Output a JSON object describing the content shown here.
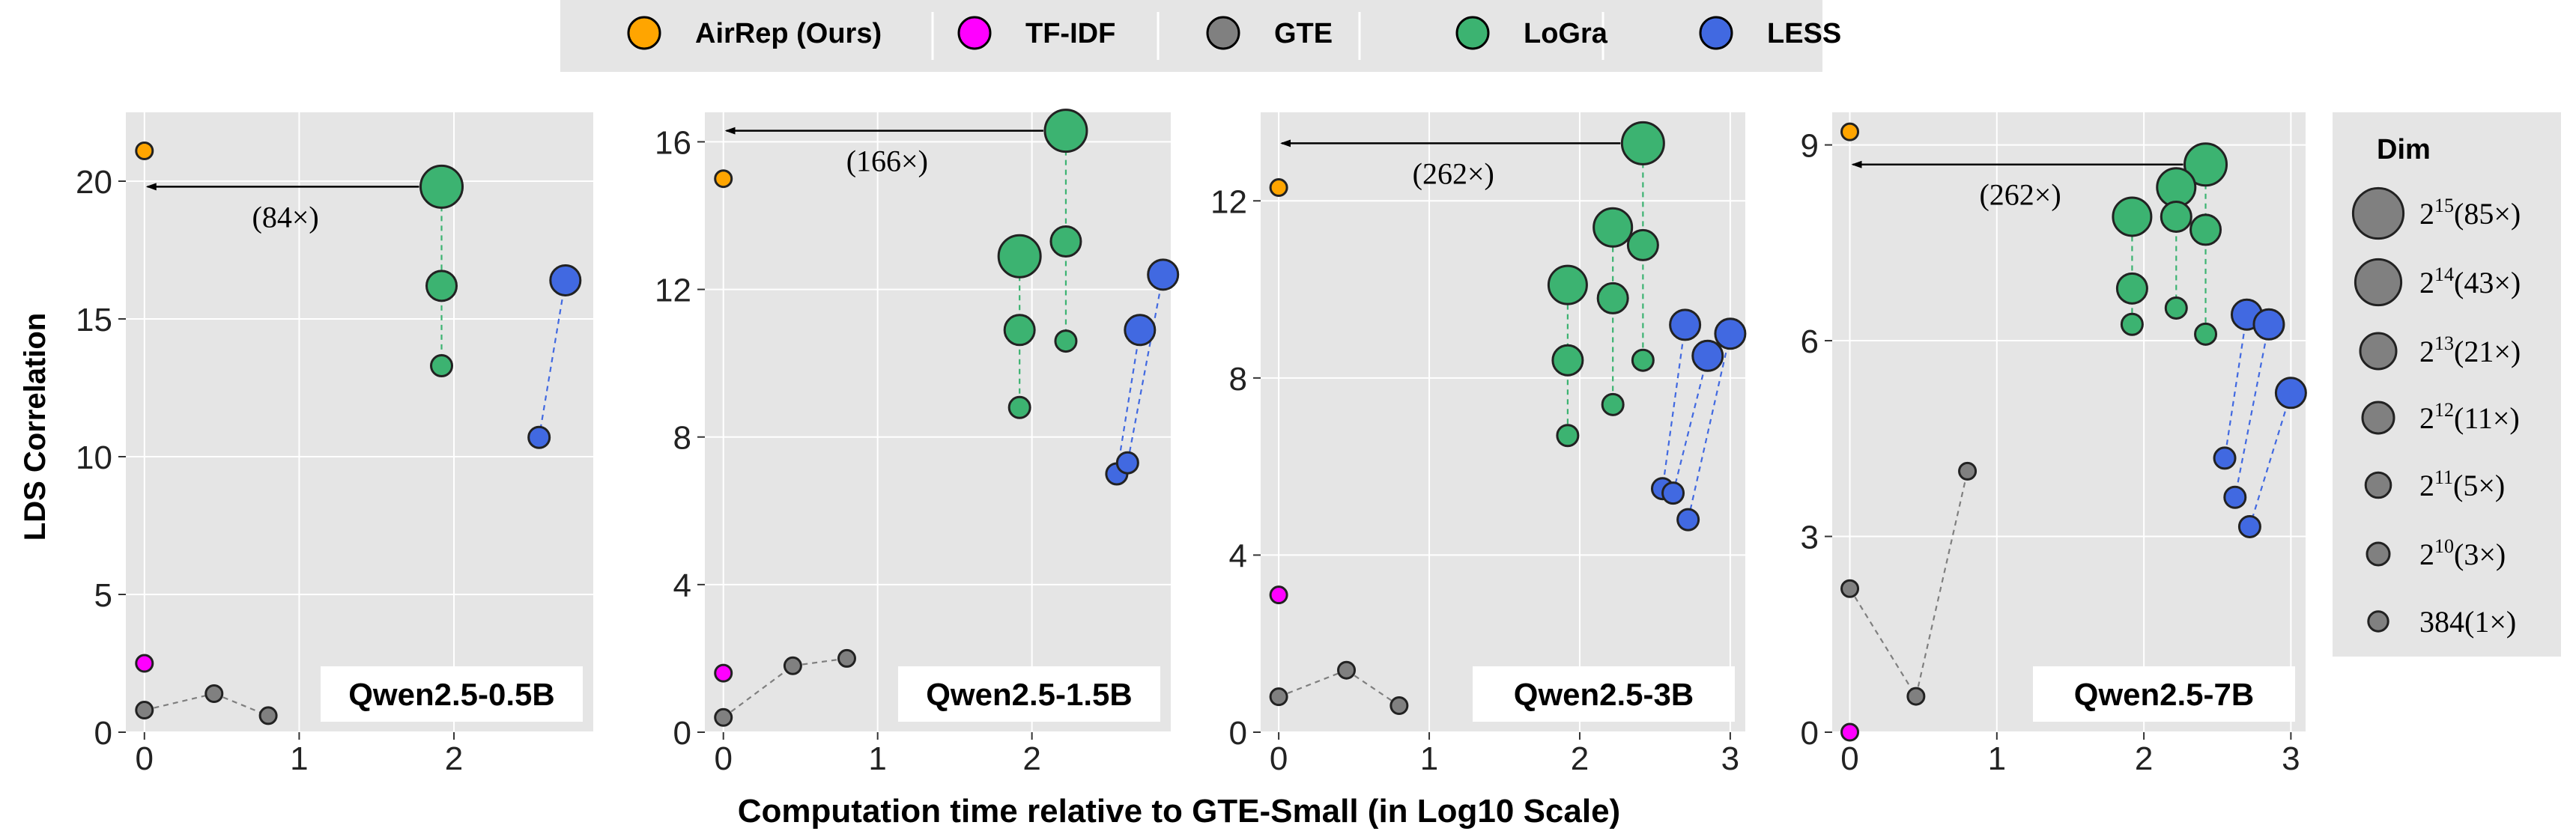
{
  "chart_data": {
    "type": "scatter",
    "ylabel": "LDS Correlation",
    "xlabel": "Computation time relative to GTE-Small (in Log10 Scale)",
    "grid": true,
    "legend": {
      "placement": "top",
      "entries": [
        {
          "name": "AirRep (Ours)",
          "color": "#FFA500"
        },
        {
          "name": "TF-IDF",
          "color": "#FF00FF"
        },
        {
          "name": "GTE",
          "color": "#808080"
        },
        {
          "name": "LoGra",
          "color": "#3CB371"
        },
        {
          "name": "LESS",
          "color": "#4169E1"
        }
      ]
    },
    "size_legend": {
      "title": "Dim",
      "entries": [
        {
          "base": "2",
          "exp": "15",
          "suffix": "(85×)",
          "dim": 32768
        },
        {
          "base": "2",
          "exp": "14",
          "suffix": "(43×)",
          "dim": 16384
        },
        {
          "base": "2",
          "exp": "13",
          "suffix": "(21×)",
          "dim": 8192
        },
        {
          "base": "2",
          "exp": "12",
          "suffix": "(11×)",
          "dim": 4096
        },
        {
          "base": "2",
          "exp": "11",
          "suffix": "(5×)",
          "dim": 2048
        },
        {
          "base": "2",
          "exp": "10",
          "suffix": "(3×)",
          "dim": 1024
        },
        {
          "base": "384",
          "exp": "",
          "suffix": "(1×)",
          "dim": 384
        }
      ]
    },
    "panels": [
      {
        "title": "Qwen2.5-0.5B",
        "xlim": [
          -0.12,
          2.9
        ],
        "ylim": [
          0,
          22.5
        ],
        "xticks": [
          0,
          1,
          2
        ],
        "yticks": [
          0,
          5,
          10,
          15,
          20
        ],
        "arrow": {
          "from": [
            1.92,
            19.8
          ],
          "to": [
            0,
            19.8
          ],
          "label": "(84×)"
        },
        "series": [
          {
            "name": "AirRep (Ours)",
            "points": [
              {
                "x": 0.0,
                "y": 21.1,
                "dim": 384
              }
            ]
          },
          {
            "name": "TF-IDF",
            "points": [
              {
                "x": 0.0,
                "y": 2.5,
                "dim": 384
              }
            ]
          },
          {
            "name": "GTE",
            "connect": "chain",
            "points": [
              {
                "x": 0.0,
                "y": 0.8,
                "dim": 384
              },
              {
                "x": 0.45,
                "y": 1.4,
                "dim": 384
              },
              {
                "x": 0.8,
                "y": 0.6,
                "dim": 384
              }
            ]
          },
          {
            "name": "LoGra",
            "connect": "chain",
            "points": [
              {
                "x": 1.92,
                "y": 19.8,
                "dim": 32768
              },
              {
                "x": 1.92,
                "y": 16.2,
                "dim": 8192
              },
              {
                "x": 1.92,
                "y": 13.3,
                "dim": 2048
              }
            ]
          },
          {
            "name": "LESS",
            "connect": "chain",
            "points": [
              {
                "x": 2.72,
                "y": 16.4,
                "dim": 8192
              },
              {
                "x": 2.55,
                "y": 10.7,
                "dim": 2048
              }
            ]
          }
        ]
      },
      {
        "title": "Qwen2.5-1.5B",
        "xlim": [
          -0.12,
          2.9
        ],
        "ylim": [
          0,
          16.8
        ],
        "xticks": [
          0,
          1,
          2
        ],
        "yticks": [
          0,
          4,
          8,
          12,
          16
        ],
        "arrow": {
          "from": [
            2.22,
            16.3
          ],
          "to": [
            0,
            16.3
          ],
          "label": "(166×)"
        },
        "series": [
          {
            "name": "AirRep (Ours)",
            "points": [
              {
                "x": 0.0,
                "y": 15.0,
                "dim": 384
              }
            ]
          },
          {
            "name": "TF-IDF",
            "points": [
              {
                "x": 0.0,
                "y": 1.6,
                "dim": 384
              }
            ]
          },
          {
            "name": "GTE",
            "connect": "chain",
            "points": [
              {
                "x": 0.0,
                "y": 0.4,
                "dim": 384
              },
              {
                "x": 0.45,
                "y": 1.8,
                "dim": 384
              },
              {
                "x": 0.8,
                "y": 2.0,
                "dim": 384
              }
            ]
          },
          {
            "name": "LoGra",
            "connect": "pairs",
            "points": [
              {
                "x": 1.92,
                "y": 12.9,
                "dim": 32768
              },
              {
                "x": 1.92,
                "y": 10.9,
                "dim": 8192
              },
              {
                "x": 1.92,
                "y": 8.8,
                "dim": 2048
              },
              {
                "x": 2.22,
                "y": 16.3,
                "dim": 32768
              },
              {
                "x": 2.22,
                "y": 13.3,
                "dim": 8192
              },
              {
                "x": 2.22,
                "y": 10.6,
                "dim": 2048
              }
            ]
          },
          {
            "name": "LESS",
            "connect": "pairs",
            "points": [
              {
                "x": 2.7,
                "y": 10.9,
                "dim": 8192
              },
              {
                "x": 2.55,
                "y": 7.0,
                "dim": 2048
              },
              {
                "x": 2.85,
                "y": 12.4,
                "dim": 8192
              },
              {
                "x": 2.62,
                "y": 7.3,
                "dim": 2048
              }
            ]
          }
        ]
      },
      {
        "title": "Qwen2.5-3B",
        "xlim": [
          -0.12,
          3.1
        ],
        "ylim": [
          0,
          14.0
        ],
        "xticks": [
          0,
          1,
          2,
          3
        ],
        "yticks": [
          0,
          4,
          8,
          12
        ],
        "arrow": {
          "from": [
            2.42,
            13.3
          ],
          "to": [
            0,
            13.3
          ],
          "label": "(262×)"
        },
        "series": [
          {
            "name": "AirRep (Ours)",
            "points": [
              {
                "x": 0.0,
                "y": 12.3,
                "dim": 384
              }
            ]
          },
          {
            "name": "TF-IDF",
            "points": [
              {
                "x": 0.0,
                "y": 3.1,
                "dim": 384
              }
            ]
          },
          {
            "name": "GTE",
            "connect": "chain",
            "points": [
              {
                "x": 0.0,
                "y": 0.8,
                "dim": 384
              },
              {
                "x": 0.45,
                "y": 1.4,
                "dim": 384
              },
              {
                "x": 0.8,
                "y": 0.6,
                "dim": 384
              }
            ]
          },
          {
            "name": "LoGra",
            "connect": "pairs",
            "points": [
              {
                "x": 1.92,
                "y": 10.1,
                "dim": 16384
              },
              {
                "x": 1.92,
                "y": 8.4,
                "dim": 8192
              },
              {
                "x": 1.92,
                "y": 6.7,
                "dim": 2048
              },
              {
                "x": 2.22,
                "y": 11.4,
                "dim": 16384
              },
              {
                "x": 2.22,
                "y": 9.8,
                "dim": 8192
              },
              {
                "x": 2.22,
                "y": 7.4,
                "dim": 2048
              },
              {
                "x": 2.42,
                "y": 13.3,
                "dim": 32768
              },
              {
                "x": 2.42,
                "y": 11.0,
                "dim": 8192
              },
              {
                "x": 2.42,
                "y": 8.4,
                "dim": 2048
              }
            ]
          },
          {
            "name": "LESS",
            "connect": "pairs",
            "points": [
              {
                "x": 2.7,
                "y": 9.2,
                "dim": 8192
              },
              {
                "x": 2.55,
                "y": 5.5,
                "dim": 2048
              },
              {
                "x": 2.85,
                "y": 8.5,
                "dim": 8192
              },
              {
                "x": 2.62,
                "y": 5.4,
                "dim": 2048
              },
              {
                "x": 3.0,
                "y": 9.0,
                "dim": 8192
              },
              {
                "x": 2.72,
                "y": 4.8,
                "dim": 2048
              }
            ]
          }
        ]
      },
      {
        "title": "Qwen2.5-7B",
        "xlim": [
          -0.12,
          3.1
        ],
        "ylim": [
          0,
          9.5
        ],
        "xticks": [
          0,
          1,
          2,
          3
        ],
        "yticks": [
          0,
          3,
          6,
          9
        ],
        "arrow": {
          "from": [
            2.42,
            8.7
          ],
          "to": [
            0,
            8.7
          ],
          "label": "(262×)"
        },
        "series": [
          {
            "name": "AirRep (Ours)",
            "points": [
              {
                "x": 0.0,
                "y": 9.2,
                "dim": 384
              }
            ]
          },
          {
            "name": "TF-IDF",
            "points": [
              {
                "x": 0.0,
                "y": 0.0,
                "dim": 384
              }
            ]
          },
          {
            "name": "GTE",
            "connect": "chain",
            "points": [
              {
                "x": 0.0,
                "y": 2.2,
                "dim": 384
              },
              {
                "x": 0.45,
                "y": 0.55,
                "dim": 384
              },
              {
                "x": 0.8,
                "y": 4.0,
                "dim": 384
              }
            ]
          },
          {
            "name": "LoGra",
            "connect": "pairs",
            "points": [
              {
                "x": 1.92,
                "y": 7.9,
                "dim": 16384
              },
              {
                "x": 1.92,
                "y": 6.8,
                "dim": 8192
              },
              {
                "x": 1.92,
                "y": 6.25,
                "dim": 2048
              },
              {
                "x": 2.22,
                "y": 8.35,
                "dim": 16384
              },
              {
                "x": 2.22,
                "y": 7.9,
                "dim": 8192
              },
              {
                "x": 2.22,
                "y": 6.5,
                "dim": 2048
              },
              {
                "x": 2.42,
                "y": 8.7,
                "dim": 32768
              },
              {
                "x": 2.42,
                "y": 7.7,
                "dim": 8192
              },
              {
                "x": 2.42,
                "y": 6.1,
                "dim": 2048
              }
            ]
          },
          {
            "name": "LESS",
            "connect": "pairs",
            "points": [
              {
                "x": 2.7,
                "y": 6.4,
                "dim": 8192
              },
              {
                "x": 2.55,
                "y": 4.2,
                "dim": 2048
              },
              {
                "x": 2.85,
                "y": 6.25,
                "dim": 8192
              },
              {
                "x": 2.62,
                "y": 3.6,
                "dim": 2048
              },
              {
                "x": 3.0,
                "y": 5.2,
                "dim": 8192
              },
              {
                "x": 2.72,
                "y": 3.15,
                "dim": 2048
              }
            ]
          }
        ]
      }
    ]
  }
}
